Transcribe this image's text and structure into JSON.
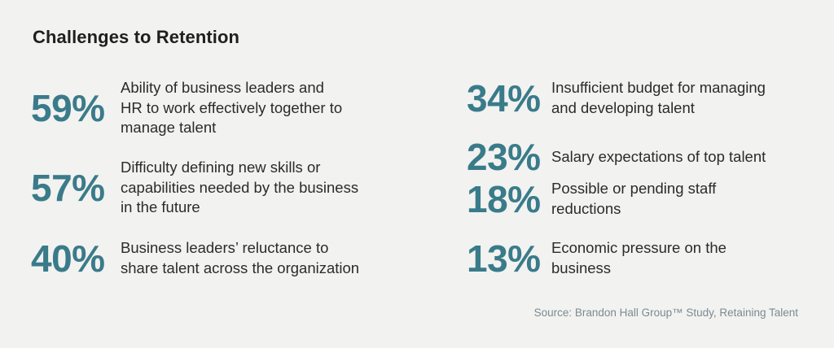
{
  "title": "Challenges to Retention",
  "left": [
    {
      "percent": "59%",
      "text": "Ability of business leaders and\nHR to work effectively together to\nmanage talent"
    },
    {
      "percent": "57%",
      "text": "Difficulty defining new skills or\ncapabilities needed by the business\nin the future"
    },
    {
      "percent": "40%",
      "text": "Business leaders’ reluctance to\nshare talent across the organization"
    }
  ],
  "right": [
    {
      "percent": "34%",
      "text": "Insufficient budget for managing\nand developing talent"
    },
    {
      "percent": "23%",
      "text": "Salary expectations of top talent"
    },
    {
      "percent": "18%",
      "text": "Possible or pending staff\nreductions"
    },
    {
      "percent": "13%",
      "text": "Economic pressure on the\nbusiness"
    }
  ],
  "source": "Source: Brandon Hall Group™ Study, Retaining Talent",
  "colors": {
    "accent": "#3a7b8a",
    "background": "#f2f2f0",
    "text": "#2b2b2b"
  }
}
